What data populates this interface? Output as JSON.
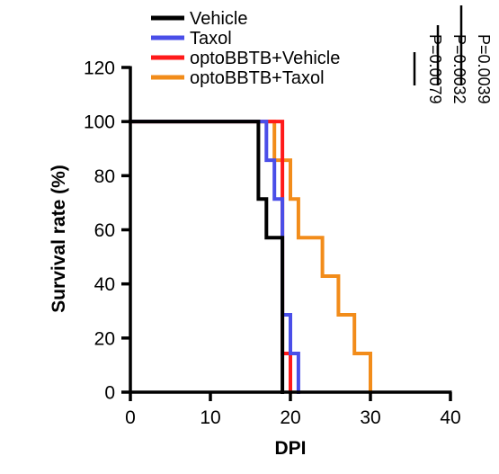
{
  "chart_data": {
    "type": "line",
    "step": true,
    "xlabel": "DPI",
    "ylabel": "Survival rate (%)",
    "xlim": [
      0,
      40
    ],
    "ylim": [
      0,
      120
    ],
    "xticks": [
      0,
      10,
      20,
      30,
      40
    ],
    "yticks": [
      0,
      20,
      40,
      60,
      80,
      100,
      120
    ],
    "grid": false,
    "legend_position": "top",
    "series": [
      {
        "name": "Vehicle",
        "color": "#000000",
        "x": [
          0,
          16,
          17,
          18,
          19
        ],
        "y": [
          100,
          71.4,
          57.1,
          57.1,
          0
        ]
      },
      {
        "name": "Taxol",
        "color": "#4a4ee8",
        "x": [
          0,
          16,
          17,
          18,
          19,
          20,
          21
        ],
        "y": [
          100,
          100,
          85.7,
          71.4,
          28.6,
          14.3,
          0
        ]
      },
      {
        "name": "optoBBTB+Vehicle",
        "color": "#ff1a1a",
        "x": [
          0,
          19,
          20
        ],
        "y": [
          100,
          14.3,
          0
        ]
      },
      {
        "name": "optoBBTB+Taxol",
        "color": "#f28c1a",
        "x": [
          0,
          18,
          20,
          21,
          24,
          26,
          28,
          30
        ],
        "y": [
          100,
          85.7,
          71.4,
          57.1,
          42.9,
          28.6,
          14.3,
          0
        ]
      }
    ],
    "annotations": [
      "P=0.0039",
      "P=0.0032",
      "P=0.0079"
    ]
  }
}
